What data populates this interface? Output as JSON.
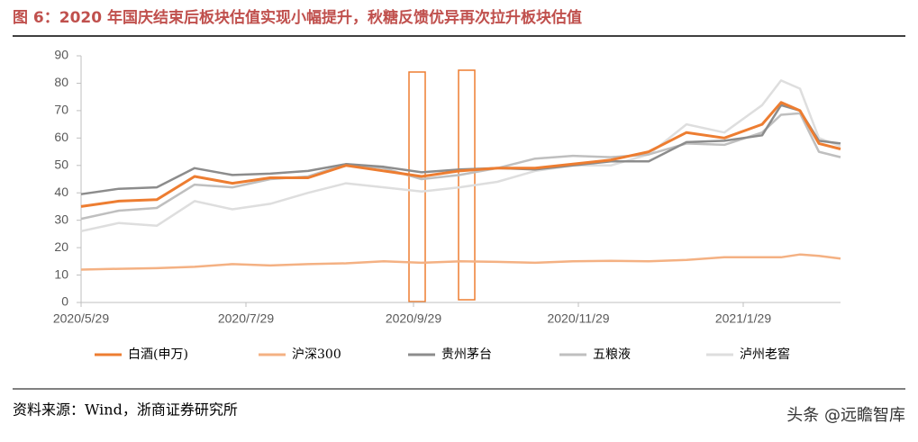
{
  "chart_data": {
    "type": "line",
    "title": "图 6：2020 年国庆结束后板块估值实现小幅提升，秋糖反馈优异再次拉升板块估值",
    "source": "资料来源：Wind，浙商证券研究所",
    "watermark": "头条 @远瞻智库",
    "x": [
      "2020/5/29",
      "2020/6/12",
      "2020/6/26",
      "2020/7/10",
      "2020/7/24",
      "2020/8/7",
      "2020/8/21",
      "2020/9/4",
      "2020/9/18",
      "2020/10/2",
      "2020/10/16",
      "2020/10/30",
      "2020/11/13",
      "2020/11/27",
      "2020/12/11",
      "2020/12/25",
      "2021/1/8",
      "2021/1/22",
      "2021/2/5",
      "2021/2/12",
      "2021/2/19",
      "2021/2/26",
      "2021/3/6"
    ],
    "xlim": [
      "2020/5/29",
      "2021/3/6"
    ],
    "xticks": [
      "2020/5/29",
      "2020/7/29",
      "2020/9/29",
      "2020/11/29",
      "2021/1/29"
    ],
    "ylim": [
      0,
      90
    ],
    "yticks": [
      0,
      10,
      20,
      30,
      40,
      50,
      60,
      70,
      80,
      90
    ],
    "series": [
      {
        "name": "白酒(申万)",
        "color": "#ed7d31",
        "values": [
          35,
          37,
          37.5,
          46,
          43.5,
          45.5,
          45.5,
          50,
          48,
          46,
          48,
          49,
          49,
          50.5,
          52,
          55,
          62,
          60,
          65,
          73,
          70,
          58,
          56
        ]
      },
      {
        "name": "沪深300",
        "color": "#f4b183",
        "values": [
          12,
          12.3,
          12.5,
          13,
          14,
          13.5,
          14,
          14.3,
          15,
          14.5,
          15,
          14.8,
          14.5,
          15,
          15.2,
          15,
          15.5,
          16.5,
          16.5,
          16.5,
          17.5,
          17,
          16
        ]
      },
      {
        "name": "贵州茅台",
        "color": "#8c8c8c",
        "values": [
          39.5,
          41.5,
          42,
          49,
          46.5,
          47,
          48,
          50.5,
          49.5,
          47.5,
          48.5,
          49,
          48.5,
          50,
          51.5,
          51.5,
          58.5,
          59,
          61,
          72,
          70,
          59,
          58
        ]
      },
      {
        "name": "五粮液",
        "color": "#bfbfbf",
        "values": [
          30.5,
          33.5,
          34.5,
          43,
          42,
          45,
          46,
          50.5,
          49,
          45,
          46.5,
          49,
          52.5,
          53.5,
          53,
          54,
          58,
          57.5,
          62,
          68.5,
          69,
          55,
          53
        ]
      },
      {
        "name": "泸州老窖",
        "color": "#dedede",
        "values": [
          26,
          29,
          28,
          37,
          34,
          36,
          40,
          43.5,
          42,
          40.5,
          42,
          44,
          48,
          50,
          50,
          54,
          65,
          62,
          72,
          81,
          78,
          60,
          57
        ]
      }
    ]
  }
}
